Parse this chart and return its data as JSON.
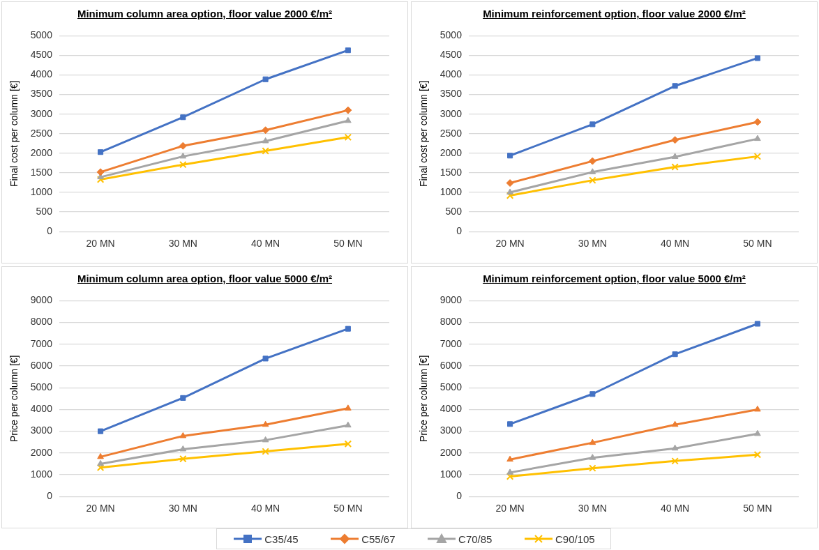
{
  "chart_data": [
    {
      "type": "line",
      "title": "Minimum column area option, floor value 2000 €/m²",
      "ylabel": "Final cost per column [€]",
      "categories": [
        "20 MN",
        "30 MN",
        "40 MN",
        "50 MN"
      ],
      "ylim": [
        0,
        5000
      ],
      "yticks": [
        0,
        500,
        1000,
        1500,
        2000,
        2500,
        3000,
        3500,
        4000,
        4500,
        5000
      ],
      "grid": "y",
      "legend": "bottom",
      "series": [
        {
          "name": "C35/45",
          "color": "#4472c4",
          "marker": "square",
          "values": [
            2030,
            2920,
            3890,
            4630
          ]
        },
        {
          "name": "C55/67",
          "color": "#ed7d31",
          "marker": "diamond",
          "values": [
            1520,
            2190,
            2590,
            3100
          ]
        },
        {
          "name": "C70/85",
          "color": "#a5a5a5",
          "marker": "triangle",
          "values": [
            1390,
            1920,
            2310,
            2830
          ]
        },
        {
          "name": "C90/105",
          "color": "#ffc000",
          "marker": "cross",
          "values": [
            1330,
            1710,
            2060,
            2410
          ]
        }
      ]
    },
    {
      "type": "line",
      "title": "Minimum reinforcement option, floor value 2000 €/m²",
      "ylabel": "Final cost per column [€]",
      "categories": [
        "20 MN",
        "30 MN",
        "40 MN",
        "50 MN"
      ],
      "ylim": [
        0,
        5000
      ],
      "yticks": [
        0,
        500,
        1000,
        1500,
        2000,
        2500,
        3000,
        3500,
        4000,
        4500,
        5000
      ],
      "grid": "y",
      "legend": false,
      "series": [
        {
          "color": "#4472c4",
          "marker": "square",
          "values": [
            1940,
            2740,
            3720,
            4430
          ]
        },
        {
          "color": "#ed7d31",
          "marker": "diamond",
          "values": [
            1240,
            1800,
            2340,
            2800
          ]
        },
        {
          "color": "#a5a5a5",
          "marker": "triangle",
          "values": [
            1000,
            1520,
            1910,
            2370
          ]
        },
        {
          "color": "#ffc000",
          "marker": "cross",
          "values": [
            920,
            1310,
            1650,
            1920
          ]
        }
      ]
    },
    {
      "type": "line",
      "title": "Minimum column area option, floor value 5000 €/m²",
      "ylabel": "Price per column [€]",
      "categories": [
        "20 MN",
        "30 MN",
        "40 MN",
        "50 MN"
      ],
      "ylim": [
        0,
        9000
      ],
      "yticks": [
        0,
        1000,
        2000,
        3000,
        4000,
        5000,
        6000,
        7000,
        8000,
        9000
      ],
      "grid": "y",
      "legend": false,
      "series": [
        {
          "color": "#4472c4",
          "marker": "square",
          "values": [
            3000,
            4530,
            6340,
            7710
          ]
        },
        {
          "color": "#ed7d31",
          "marker": "triangle",
          "values": [
            1820,
            2780,
            3300,
            4050
          ]
        },
        {
          "color": "#a5a5a5",
          "marker": "triangle",
          "values": [
            1500,
            2170,
            2590,
            3270
          ]
        },
        {
          "color": "#ffc000",
          "marker": "cross",
          "values": [
            1330,
            1730,
            2070,
            2420
          ]
        }
      ]
    },
    {
      "type": "line",
      "title": "Minimum reinforcement option, floor value 5000 €/m²",
      "ylabel": "Price per column [€]",
      "categories": [
        "20 MN",
        "30 MN",
        "40 MN",
        "50 MN"
      ],
      "ylim": [
        0,
        9000
      ],
      "yticks": [
        0,
        1000,
        2000,
        3000,
        4000,
        5000,
        6000,
        7000,
        8000,
        9000
      ],
      "grid": "y",
      "series": [
        {
          "color": "#4472c4",
          "marker": "square",
          "values": [
            3330,
            4710,
            6540,
            7940
          ]
        },
        {
          "color": "#ed7d31",
          "marker": "triangle",
          "values": [
            1700,
            2470,
            3300,
            4000
          ]
        },
        {
          "color": "#a5a5a5",
          "marker": "triangle",
          "values": [
            1100,
            1780,
            2210,
            2880
          ]
        },
        {
          "color": "#ffc000",
          "marker": "cross",
          "values": [
            920,
            1300,
            1630,
            1920
          ]
        }
      ]
    }
  ]
}
